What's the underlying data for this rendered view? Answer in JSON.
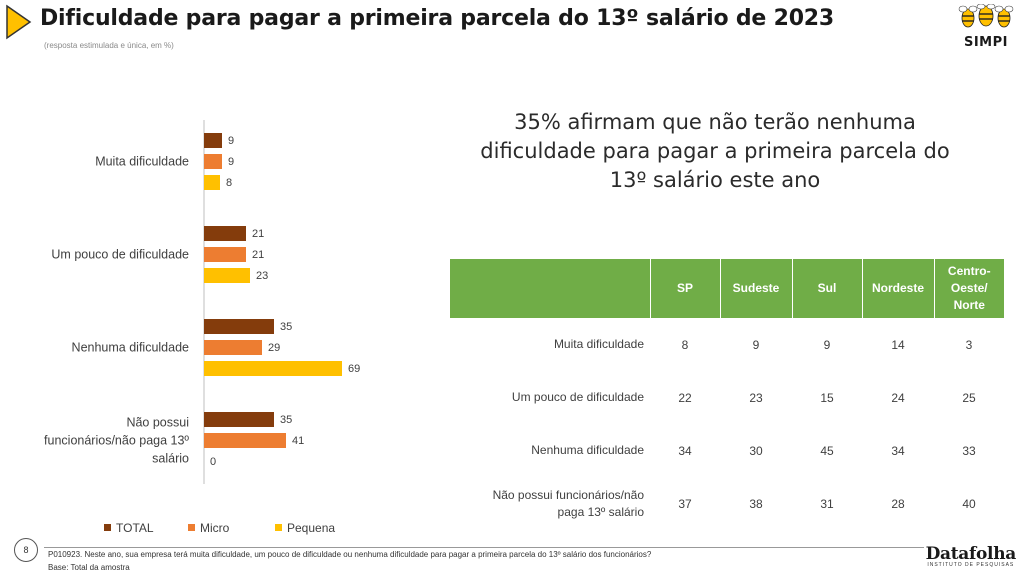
{
  "page": {
    "title": "Dificuldade para pagar a primeira parcela do 13º salário de 2023",
    "subtitle": "(resposta estimulada e única, em %)",
    "logo_text": "SIMPI",
    "headline_lines": [
      "35% afirmam que não terão nenhuma",
      "dificuldade para pagar a primeira parcela do",
      "13º salário este ano"
    ],
    "page_number": "8",
    "question": "P010923. Neste ano, sua empresa terá muita dificuldade, um pouco de dificuldade ou nenhuma dificuldade para pagar a primeira parcela do 13º salário dos funcionários?",
    "base": "Base: Total da amostra",
    "brand_name": "Datafolha",
    "brand_sub": "INSTITUTO DE PESQUISAS"
  },
  "colors": {
    "accent": "#70ad47",
    "total": "#843c0c",
    "micro": "#ed7d31",
    "pequena": "#ffc000"
  },
  "chart_data": {
    "type": "bar",
    "orientation": "horizontal",
    "categories": [
      [
        "Muita dificuldade"
      ],
      [
        "Um pouco de dificuldade"
      ],
      [
        "Nenhuma dificuldade"
      ],
      [
        "Não possui",
        "funcionários/não paga 13º",
        "salário"
      ]
    ],
    "series": [
      {
        "name": "TOTAL",
        "color": "#843c0c",
        "values": [
          9,
          21,
          35,
          35
        ]
      },
      {
        "name": "Micro",
        "color": "#ed7d31",
        "values": [
          9,
          21,
          29,
          41
        ]
      },
      {
        "name": "Pequena",
        "color": "#ffc000",
        "values": [
          8,
          23,
          69,
          0
        ]
      }
    ],
    "legend_position": "bottom"
  },
  "table": {
    "columns": [
      [
        "SP"
      ],
      [
        "Sudeste"
      ],
      [
        "Sul"
      ],
      [
        "Nordeste"
      ],
      [
        "Centro-",
        "Oeste/",
        "Norte"
      ]
    ],
    "rows": [
      {
        "label": [
          "Muita dificuldade"
        ],
        "values": [
          "8",
          "9",
          "9",
          "14",
          "3"
        ]
      },
      {
        "label": [
          "Um pouco de dificuldade"
        ],
        "values": [
          "22",
          "23",
          "15",
          "24",
          "25"
        ]
      },
      {
        "label": [
          "Nenhuma dificuldade"
        ],
        "values": [
          "34",
          "30",
          "45",
          "34",
          "33"
        ]
      },
      {
        "label": [
          "Não possui funcionários/não",
          "paga 13º salário"
        ],
        "values": [
          "37",
          "38",
          "31",
          "28",
          "40"
        ]
      }
    ]
  }
}
